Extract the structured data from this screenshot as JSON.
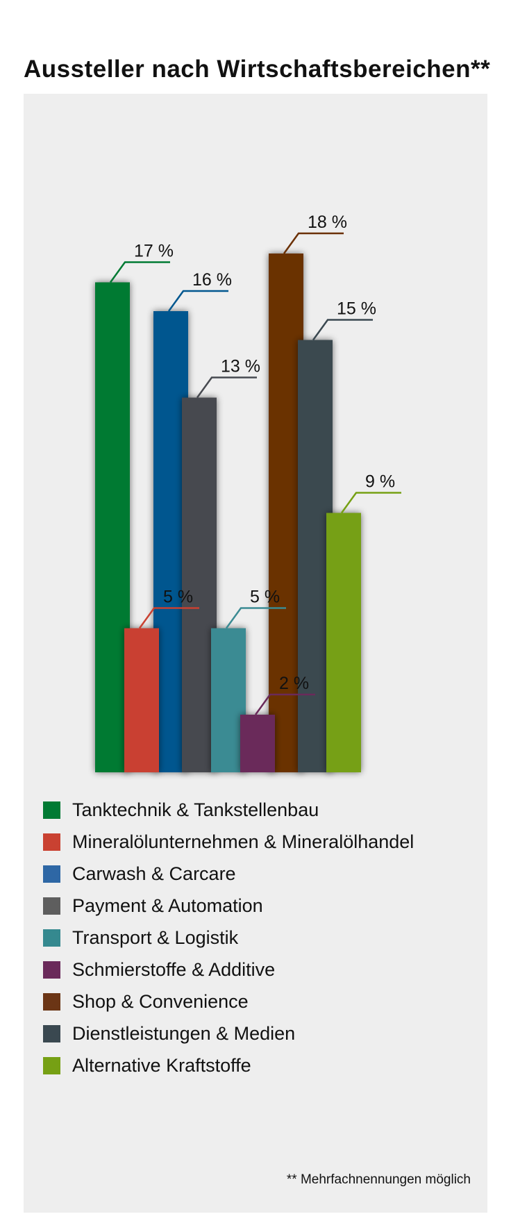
{
  "title": "Aussteller nach Wirtschaftsbereichen**",
  "footnote": "** Mehrfachnennungen möglich",
  "chart_data": {
    "type": "bar",
    "unit": "%",
    "ylim": [
      0,
      18
    ],
    "grid": false,
    "legend_position": "bottom",
    "categories": [
      "Tanktechnik & Tankstellenbau",
      "Mineralölunternehmen & Mineralölhandel",
      "Carwash & Carcare",
      "Payment & Automation",
      "Transport & Logistik",
      "Schmierstoffe & Additive",
      "Shop & Convenience",
      "Dienstleistungen & Medien",
      "Alternative Kraftstoffe"
    ],
    "values": [
      17,
      5,
      16,
      13,
      5,
      2,
      18,
      15,
      9
    ],
    "labels": [
      "17 %",
      "5 %",
      "16 %",
      "13 %",
      "5 %",
      "2 %",
      "18 %",
      "15 %",
      "9 %"
    ],
    "colors": [
      "#007a33",
      "#c94131",
      "#00578f",
      "#474a50",
      "#3b8b93",
      "#6a2a5a",
      "#6b3003",
      "#3a4850",
      "#76a014"
    ],
    "legend_colors": [
      "#007a33",
      "#c94131",
      "#2e67a5",
      "#5e5e5e",
      "#35898f",
      "#6a2a5a",
      "#6b3515",
      "#3a4850",
      "#76a014"
    ]
  }
}
